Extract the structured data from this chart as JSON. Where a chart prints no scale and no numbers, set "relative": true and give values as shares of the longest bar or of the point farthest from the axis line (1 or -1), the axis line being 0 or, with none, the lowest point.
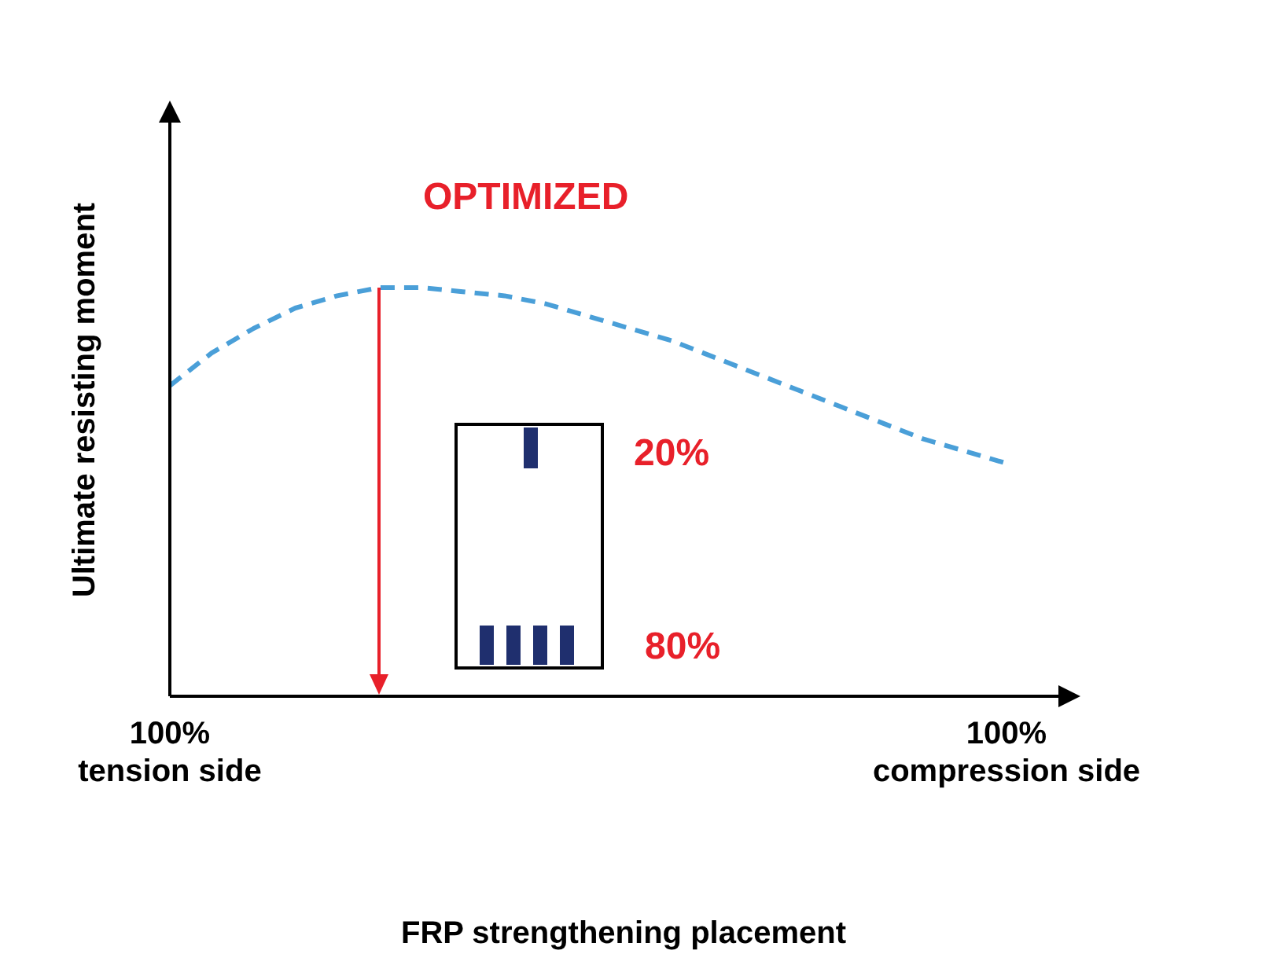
{
  "chart_data": {
    "type": "line",
    "relative": true,
    "xlabel": "FRP strengthening placement",
    "ylabel": "Ultimate resisting moment",
    "categories": [
      "100%\ntension side",
      null,
      null,
      null,
      null,
      null,
      null,
      null,
      null,
      null,
      null,
      null,
      null,
      null,
      null,
      null,
      null,
      null,
      null,
      null,
      "100%\ncompression side"
    ],
    "series": [
      {
        "color": "#4a9fd8",
        "line_style": "dashed",
        "marker": "none",
        "values": [
          0.76,
          0.84,
          0.9,
          0.95,
          0.98,
          1.0,
          1.0,
          0.99,
          0.98,
          0.96,
          0.93,
          0.9,
          0.87,
          0.83,
          0.79,
          0.75,
          0.71,
          0.67,
          0.63,
          0.6,
          0.57
        ]
      }
    ],
    "annotations": [
      "OPTIMIZED",
      "20%",
      "80%"
    ]
  }
}
